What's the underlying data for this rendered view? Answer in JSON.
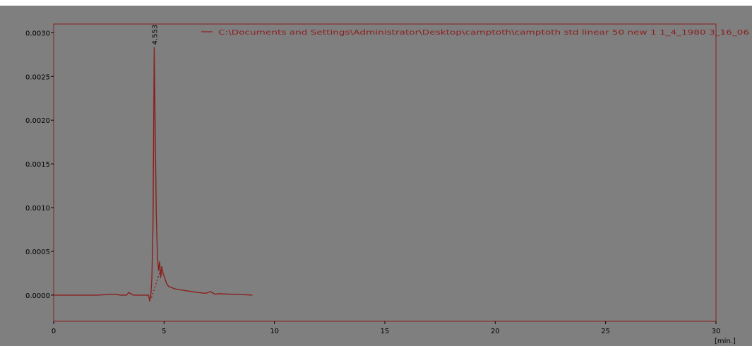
{
  "chart_data": {
    "type": "line",
    "title": "",
    "xlabel": "",
    "ylabel": "",
    "x_unit_label": "[min.]",
    "xlim": [
      0,
      30
    ],
    "ylim": [
      -0.0003,
      0.0031
    ],
    "x_ticks": [
      0,
      5,
      10,
      15,
      20,
      25,
      30
    ],
    "x_tick_labels": [
      "0",
      "5",
      "10",
      "15",
      "20",
      "25",
      "30"
    ],
    "y_ticks": [
      0.0,
      0.0005,
      0.001,
      0.0015,
      0.002,
      0.0025,
      0.003
    ],
    "y_tick_labels": [
      "0.0000",
      "0.0005",
      "0.0010",
      "0.0015",
      "0.0020",
      "0.0025",
      "0.0030"
    ],
    "grid": false,
    "legend_position": "top-right",
    "plot_background": "#7f7f7f",
    "frame_color": "#8b1f1f",
    "series": [
      {
        "name": "C:\\Documents and Settings\\Administrator\\Desktop\\camptoth\\camptoth std linear 50 new 1 1_4_1980 3_16_06",
        "color": "#8b1f1f",
        "x": [
          0.0,
          1.0,
          2.0,
          2.8,
          3.0,
          3.3,
          3.4,
          3.6,
          4.0,
          4.3,
          4.35,
          4.4,
          4.45,
          4.5,
          4.553,
          4.6,
          4.65,
          4.7,
          4.75,
          4.8,
          4.85,
          4.9,
          4.95,
          5.0,
          5.1,
          5.2,
          5.5,
          6.0,
          6.5,
          6.9,
          7.1,
          7.3,
          7.5,
          8.0,
          8.5,
          9.0
        ],
        "values": [
          0.0,
          0.0,
          0.0,
          1e-05,
          0.0,
          0.0,
          3e-05,
          0.0,
          0.0,
          0.0,
          -7e-05,
          0.0,
          0.0002,
          0.0008,
          0.00283,
          0.0019,
          0.0009,
          0.00045,
          0.00028,
          0.00038,
          0.0002,
          0.00032,
          0.00025,
          0.00022,
          0.00014,
          0.0001,
          7e-05,
          5e-05,
          3e-05,
          2e-05,
          4e-05,
          1e-05,
          1.5e-05,
          1e-05,
          5e-06,
          0.0
        ]
      }
    ],
    "baseline": {
      "color": "#8b1f1f",
      "style": "dotted",
      "x": [
        4.43,
        4.9
      ],
      "values": [
        -3e-05,
        0.00033
      ]
    },
    "peak_annotations": [
      {
        "x": 4.553,
        "y": 0.00283,
        "label": "4.553"
      }
    ]
  }
}
